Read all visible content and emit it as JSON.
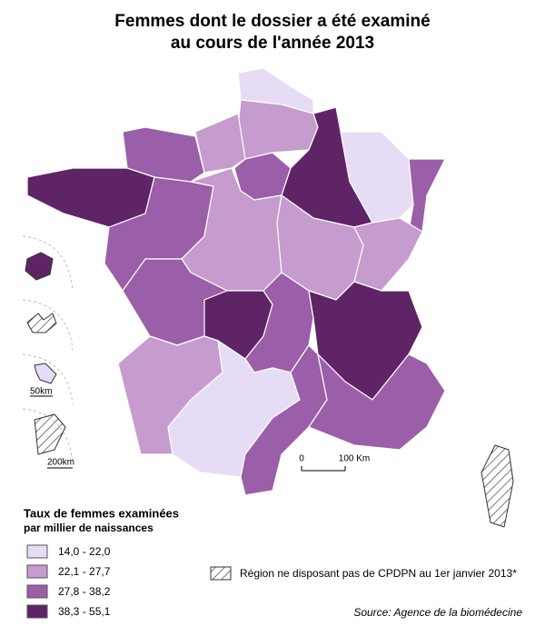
{
  "title_line1": "Femmes dont le dossier a été examiné",
  "title_line2": "au cours de l'année 2013",
  "legend": {
    "title": "Taux de femmes examinées",
    "subtitle": "par millier de naissances",
    "classes": [
      {
        "label": "14,0 - 22,0",
        "color": "#e6dcf5"
      },
      {
        "label": "22,1 - 27,7",
        "color": "#c59ccd"
      },
      {
        "label": "27,8 - 38,2",
        "color": "#9b5ea8"
      },
      {
        "label": "38,3 - 55,1",
        "color": "#5e2466"
      }
    ],
    "hatched_label": "Région ne disposant pas de CPDPN au 1er janvier 2013*"
  },
  "scale": {
    "zero": "0",
    "label": "100 Km"
  },
  "inset_scales": [
    "50km",
    "200km"
  ],
  "regions": [
    0,
    1,
    1,
    2,
    3,
    2,
    2,
    1,
    3,
    0,
    2,
    1,
    1,
    2,
    3,
    2,
    3,
    1,
    0,
    2,
    2,
    null,
    3,
    null,
    0,
    null
  ],
  "source": "Source: Agence de la biomédecine"
}
